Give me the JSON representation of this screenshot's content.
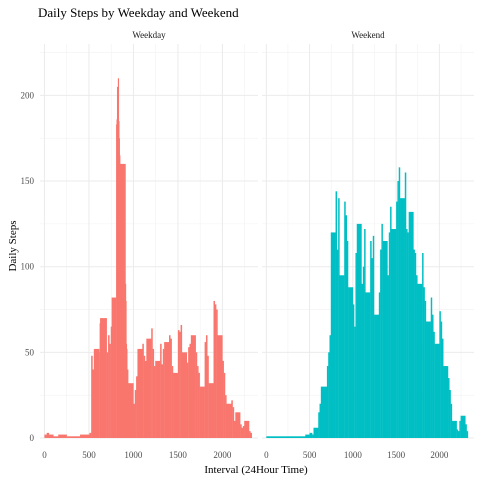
{
  "chart_data": {
    "type": "bar",
    "title": "Daily Steps by Weekday and Weekend",
    "xlabel": "Interval (24Hour Time)",
    "ylabel": "Daily Steps",
    "xlim": [
      -50,
      2400
    ],
    "ylim": [
      0,
      230
    ],
    "x_ticks": [
      0,
      500,
      1000,
      1500,
      2000
    ],
    "y_ticks": [
      0,
      50,
      100,
      150,
      200
    ],
    "grid": true,
    "legend": "none",
    "panels": [
      {
        "name": "Weekday",
        "color": "#F8766D",
        "x": [
          0,
          25,
          50,
          100,
          155,
          250,
          310,
          400,
          505,
          525,
          540,
          555,
          615,
          620,
          625,
          700,
          715,
          730,
          745,
          755,
          805,
          810,
          815,
          820,
          825,
          830,
          835,
          840,
          845,
          900,
          905,
          910,
          915,
          920,
          930,
          935,
          940,
          1000,
          1015,
          1030,
          1045,
          1100,
          1115,
          1130,
          1145,
          1200,
          1215,
          1230,
          1245,
          1300,
          1315,
          1330,
          1345,
          1400,
          1415,
          1430,
          1445,
          1500,
          1515,
          1530,
          1545,
          1600,
          1615,
          1630,
          1645,
          1700,
          1715,
          1730,
          1745,
          1800,
          1815,
          1830,
          1845,
          1900,
          1915,
          1930,
          1945,
          2000,
          2015,
          2030,
          2045,
          2100,
          2115,
          2130,
          2145,
          2200,
          2215,
          2230,
          2245,
          2300,
          2315
        ],
        "values": [
          2,
          3,
          2,
          1,
          2,
          1,
          1,
          2,
          3,
          48,
          40,
          52,
          50,
          67,
          70,
          50,
          60,
          55,
          65,
          82,
          183,
          186,
          205,
          195,
          210,
          185,
          175,
          165,
          160,
          160,
          90,
          80,
          55,
          52,
          40,
          30,
          32,
          20,
          28,
          36,
          52,
          55,
          48,
          45,
          58,
          64,
          52,
          42,
          45,
          55,
          43,
          52,
          56,
          60,
          58,
          42,
          38,
          63,
          62,
          66,
          50,
          44,
          53,
          55,
          60,
          50,
          42,
          38,
          30,
          56,
          60,
          48,
          32,
          80,
          78,
          75,
          60,
          45,
          38,
          25,
          20,
          22,
          18,
          10,
          15,
          8,
          6,
          7,
          10,
          4,
          3
        ]
      },
      {
        "name": "Weekend",
        "color": "#00BFC4",
        "x": [
          0,
          50,
          100,
          250,
          300,
          400,
          450,
          500,
          530,
          545,
          600,
          615,
          630,
          700,
          715,
          730,
          745,
          800,
          815,
          830,
          845,
          900,
          915,
          930,
          945,
          1000,
          1015,
          1030,
          1045,
          1100,
          1115,
          1130,
          1145,
          1200,
          1215,
          1230,
          1245,
          1300,
          1315,
          1330,
          1345,
          1400,
          1415,
          1430,
          1445,
          1500,
          1515,
          1530,
          1545,
          1600,
          1615,
          1630,
          1645,
          1700,
          1715,
          1730,
          1745,
          1800,
          1815,
          1830,
          1845,
          1900,
          1915,
          1930,
          1945,
          2000,
          2015,
          2030,
          2045,
          2100,
          2115,
          2130,
          2145,
          2200,
          2215,
          2230,
          2245,
          2300,
          2315
        ],
        "values": [
          1,
          1,
          1,
          1,
          1,
          1,
          2,
          3,
          2,
          6,
          15,
          20,
          30,
          42,
          50,
          60,
          120,
          144,
          110,
          140,
          95,
          138,
          130,
          115,
          88,
          78,
          65,
          108,
          125,
          90,
          100,
          122,
          85,
          115,
          105,
          118,
          72,
          85,
          110,
          125,
          115,
          95,
          120,
          135,
          122,
          138,
          150,
          158,
          140,
          155,
          122,
          120,
          132,
          110,
          108,
          95,
          90,
          108,
          88,
          80,
          68,
          82,
          72,
          62,
          55,
          74,
          68,
          58,
          42,
          35,
          28,
          20,
          10,
          5,
          4,
          10,
          13,
          8,
          4
        ]
      }
    ]
  }
}
